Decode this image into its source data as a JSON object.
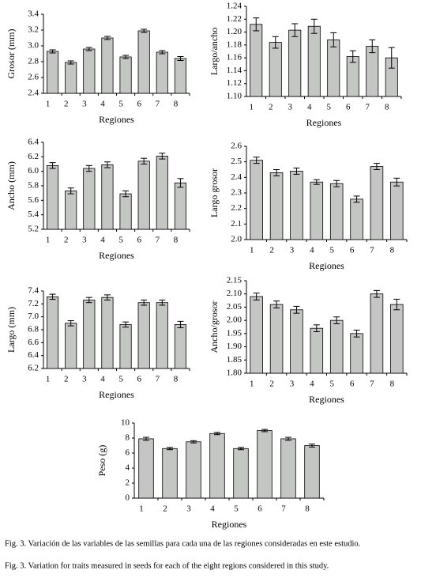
{
  "chart_data": [
    {
      "type": "bar",
      "ylabel": "Grosor (mm)",
      "xlabel": "Regiones",
      "categories": [
        "1",
        "2",
        "3",
        "4",
        "5",
        "6",
        "7",
        "8"
      ],
      "values": [
        2.93,
        2.79,
        2.96,
        3.1,
        2.86,
        3.19,
        2.92,
        2.84
      ],
      "errors": [
        0.02,
        0.02,
        0.02,
        0.02,
        0.02,
        0.02,
        0.02,
        0.025
      ],
      "color": "#c4c6c4",
      "ylim": [
        2.4,
        3.4
      ],
      "yticks": [
        2.4,
        2.6,
        2.8,
        {
          "value": 3,
          "label": "3.0"
        },
        3.2,
        3.4
      ]
    },
    {
      "type": "bar",
      "ylabel": "Largo/ancho",
      "xlabel": "Regiones",
      "categories": [
        "1",
        "2",
        "3",
        "4",
        "5",
        "6",
        "7",
        "8"
      ],
      "values": [
        1.212,
        1.184,
        1.203,
        1.209,
        1.188,
        1.162,
        1.178,
        1.16
      ],
      "errors": [
        0.01,
        0.009,
        0.01,
        0.011,
        0.011,
        0.009,
        0.01,
        0.016
      ],
      "color": "#c4c6c4",
      "ylim": [
        1.1,
        1.24
      ],
      "yticks": [
        {
          "value": 1.1,
          "label": "1.10"
        },
        1.12,
        1.14,
        1.16,
        1.18,
        {
          "value": 1.2,
          "label": "1.20"
        },
        1.22,
        1.24
      ]
    },
    {
      "type": "bar",
      "ylabel": "Ancho (mm)",
      "xlabel": "Regiones",
      "categories": [
        "1",
        "2",
        "3",
        "4",
        "5",
        "6",
        "7",
        "8"
      ],
      "values": [
        6.08,
        5.73,
        6.04,
        6.09,
        5.69,
        6.14,
        6.21,
        5.84
      ],
      "errors": [
        0.04,
        0.04,
        0.04,
        0.04,
        0.04,
        0.04,
        0.04,
        0.06
      ],
      "color": "#c4c6c4",
      "ylim": [
        5.2,
        6.4
      ],
      "yticks": [
        5.2,
        5.4,
        5.6,
        5.8,
        {
          "value": 6,
          "label": "6.0"
        },
        6.2,
        6.4
      ]
    },
    {
      "type": "bar",
      "ylabel": "Largo grosor",
      "xlabel": "Regiones",
      "categories": [
        "1",
        "2",
        "3",
        "4",
        "5",
        "6",
        "7",
        "8"
      ],
      "values": [
        2.51,
        2.43,
        2.44,
        2.37,
        2.36,
        2.26,
        2.47,
        2.37
      ],
      "errors": [
        0.02,
        0.02,
        0.02,
        0.015,
        0.02,
        0.02,
        0.02,
        0.025
      ],
      "color": "#c4c6c4",
      "ylim": [
        2,
        2.6
      ],
      "yticks": [
        {
          "value": 2,
          "label": "2.0"
        },
        2.1,
        2.2,
        2.3,
        2.4,
        2.5,
        2.6
      ]
    },
    {
      "type": "bar",
      "ylabel": "Largo (mm)",
      "xlabel": "Regiones",
      "categories": [
        "1",
        "2",
        "3",
        "4",
        "5",
        "6",
        "7",
        "8"
      ],
      "values": [
        7.31,
        6.9,
        7.26,
        7.3,
        6.88,
        7.22,
        7.22,
        6.88
      ],
      "errors": [
        0.04,
        0.04,
        0.04,
        0.04,
        0.04,
        0.04,
        0.04,
        0.05
      ],
      "color": "#c4c6c4",
      "ylim": [
        6.2,
        7.4
      ],
      "yticks": [
        6.2,
        6.4,
        6.6,
        6.8,
        {
          "value": 7,
          "label": "7.0"
        },
        7.2,
        7.4
      ]
    },
    {
      "type": "bar",
      "ylabel": "Ancho/grosor",
      "xlabel": "Regiones",
      "categories": [
        "1",
        "2",
        "3",
        "4",
        "5",
        "6",
        "7",
        "8"
      ],
      "values": [
        2.09,
        2.06,
        2.04,
        1.97,
        2.0,
        1.95,
        2.1,
        2.06
      ],
      "errors": [
        0.013,
        0.013,
        0.013,
        0.013,
        0.013,
        0.013,
        0.013,
        0.02
      ],
      "color": "#c4c6c4",
      "ylim": [
        1.8,
        2.15
      ],
      "yticks": [
        {
          "value": 1.8,
          "label": "1.80"
        },
        1.85,
        {
          "value": 1.9,
          "label": "1.90"
        },
        1.95,
        {
          "value": 2,
          "label": "2.00"
        },
        2.05,
        {
          "value": 2.1,
          "label": "2.10"
        },
        2.15
      ]
    },
    {
      "type": "bar",
      "ylabel": "Peso (g)",
      "xlabel": "Regiones",
      "categories": [
        "1",
        "2",
        "3",
        "4",
        "5",
        "6",
        "7",
        "8"
      ],
      "values": [
        7.9,
        6.6,
        7.5,
        8.6,
        6.6,
        9.0,
        7.9,
        7.0
      ],
      "errors": [
        0.2,
        0.15,
        0.15,
        0.15,
        0.15,
        0.15,
        0.2,
        0.2
      ],
      "color": "#c4c6c4",
      "ylim": [
        0,
        10
      ],
      "yticks": [
        0,
        2,
        4,
        6,
        8,
        10
      ]
    }
  ],
  "caption": [
    "Fig. 3. Variación de las variables de las semillas para cada una de las regiones consideradas en este estudio.",
    "Fig. 3. Variation for traits measured in seeds for each of the eight regions considered in this study."
  ]
}
